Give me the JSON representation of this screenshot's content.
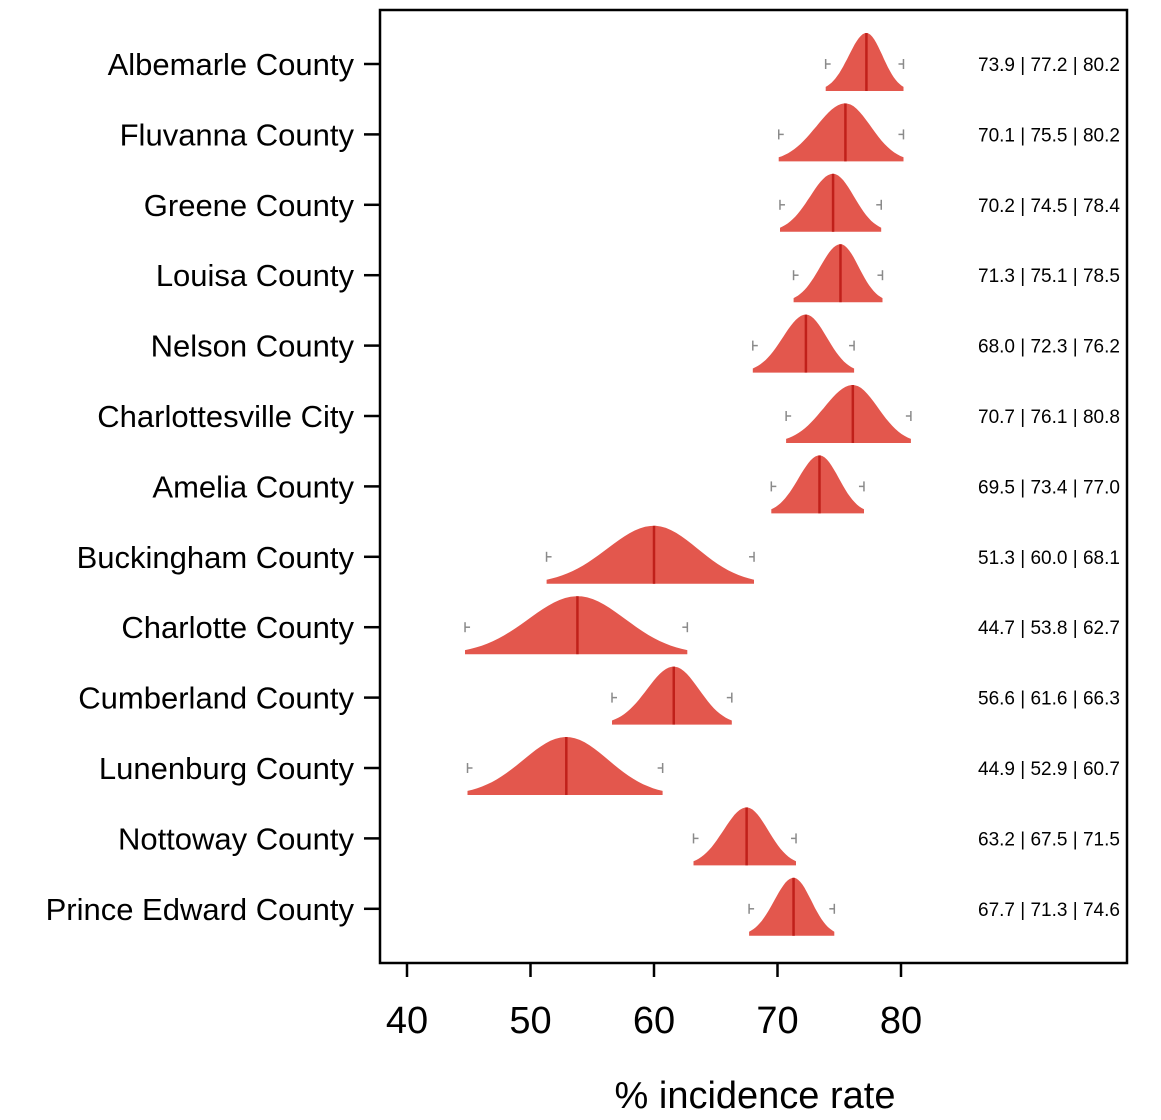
{
  "chart_data": {
    "type": "ridge-density",
    "title": "",
    "xlabel": "% incidence rate",
    "ylabel": "",
    "xlim": [
      38,
      82
    ],
    "xticks": [
      40,
      50,
      60,
      70,
      80
    ],
    "grid": false,
    "legend": "none",
    "colors": {
      "fill": "#e3574d",
      "median_line": "#c0201a",
      "bound_tick": "#8a8a8a",
      "axis": "#000000"
    },
    "categories": [
      "Albemarle County",
      "Fluvanna County",
      "Greene County",
      "Louisa County",
      "Nelson County",
      "Charlottesville City",
      "Amelia County",
      "Buckingham County",
      "Charlotte County",
      "Cumberland County",
      "Lunenburg County",
      "Nottoway County",
      "Prince Edward County"
    ],
    "series": [
      {
        "lower": 73.9,
        "median": 77.2,
        "upper": 80.2,
        "label": "73.9 | 77.2 | 80.2"
      },
      {
        "lower": 70.1,
        "median": 75.5,
        "upper": 80.2,
        "label": "70.1 | 75.5 | 80.2"
      },
      {
        "lower": 70.2,
        "median": 74.5,
        "upper": 78.4,
        "label": "70.2 | 74.5 | 78.4"
      },
      {
        "lower": 71.3,
        "median": 75.1,
        "upper": 78.5,
        "label": "71.3 | 75.1 | 78.5"
      },
      {
        "lower": 68.0,
        "median": 72.3,
        "upper": 76.2,
        "label": "68.0 | 72.3 | 76.2"
      },
      {
        "lower": 70.7,
        "median": 76.1,
        "upper": 80.8,
        "label": "70.7 | 76.1 | 80.8"
      },
      {
        "lower": 69.5,
        "median": 73.4,
        "upper": 77.0,
        "label": "69.5 | 73.4 | 77.0"
      },
      {
        "lower": 51.3,
        "median": 60.0,
        "upper": 68.1,
        "label": "51.3 | 60.0 | 68.1"
      },
      {
        "lower": 44.7,
        "median": 53.8,
        "upper": 62.7,
        "label": "44.7 | 53.8 | 62.7"
      },
      {
        "lower": 56.6,
        "median": 61.6,
        "upper": 66.3,
        "label": "56.6 | 61.6 | 66.3"
      },
      {
        "lower": 44.9,
        "median": 52.9,
        "upper": 60.7,
        "label": "44.9 | 52.9 | 60.7"
      },
      {
        "lower": 63.2,
        "median": 67.5,
        "upper": 71.5,
        "label": "63.2 | 67.5 | 71.5"
      },
      {
        "lower": 67.7,
        "median": 71.3,
        "upper": 74.6,
        "label": "67.7 | 71.3 | 74.6"
      }
    ]
  }
}
